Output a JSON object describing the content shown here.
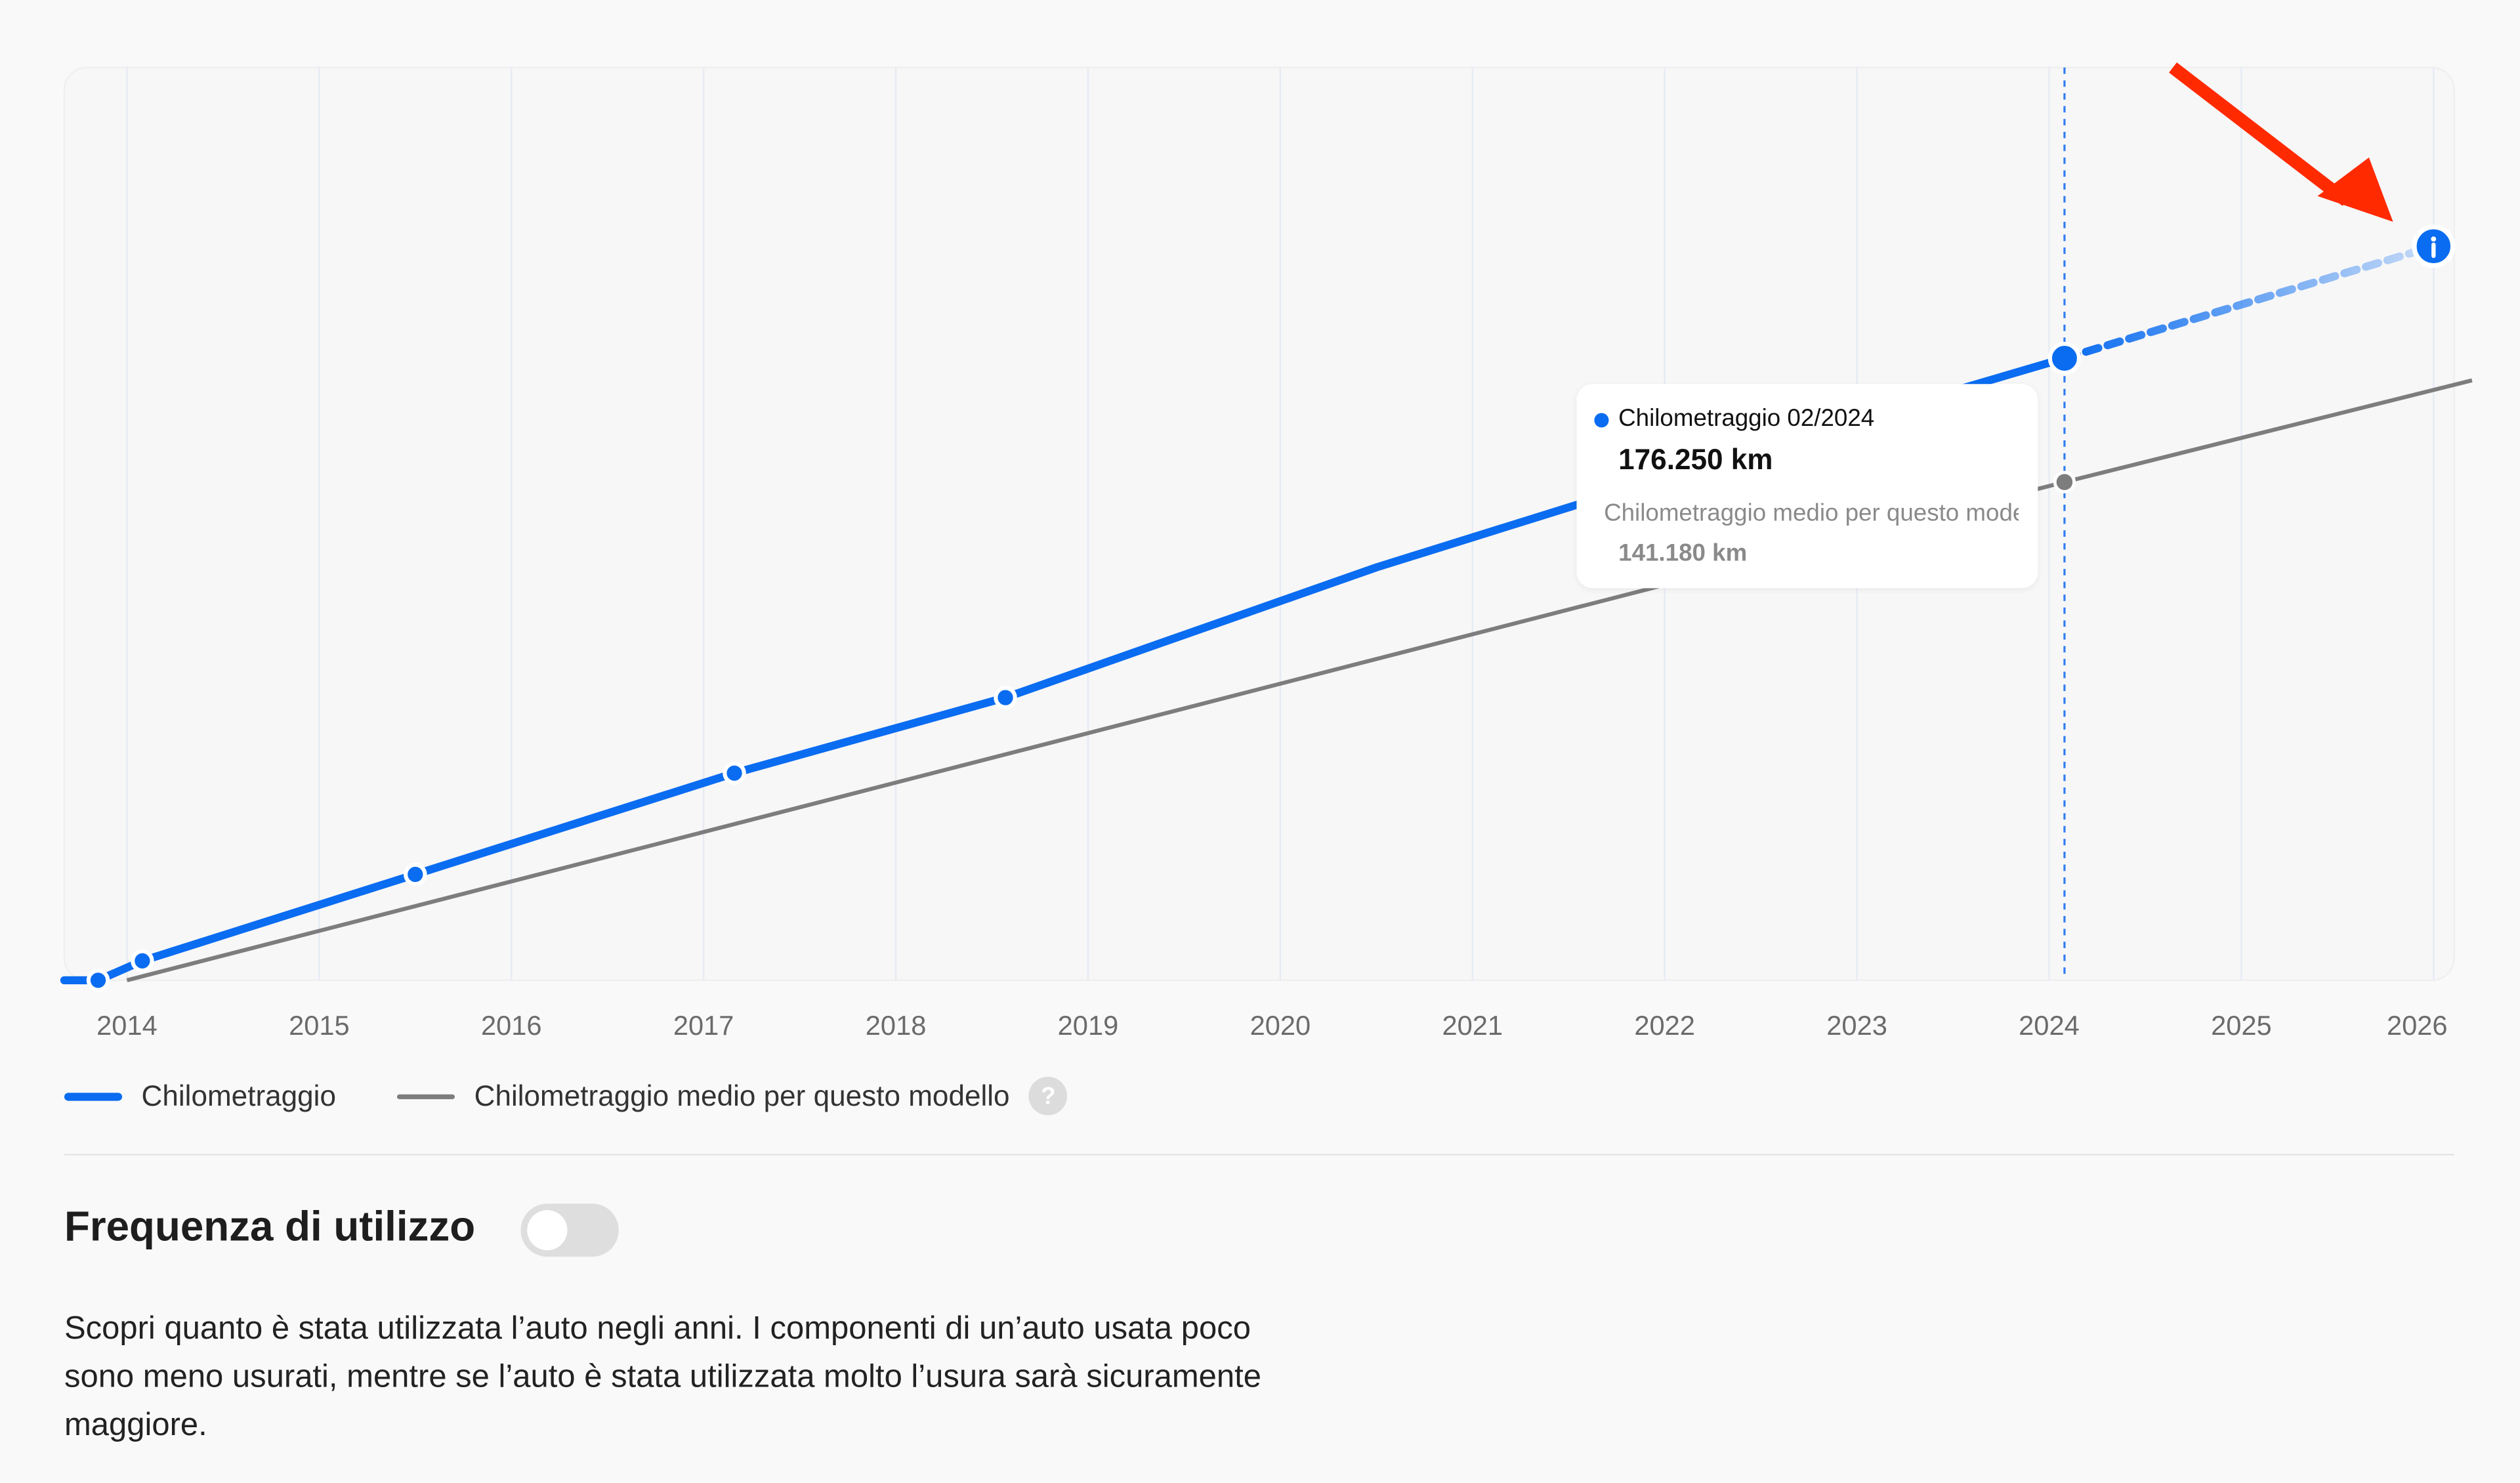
{
  "chart_data": {
    "type": "line",
    "x_ticks": [
      "2014",
      "2015",
      "2016",
      "2017",
      "2018",
      "2019",
      "2020",
      "2021",
      "2022",
      "2023",
      "2024",
      "2025",
      "2026"
    ],
    "xlim": [
      2013.7,
      2026.2
    ],
    "ylim": [
      0,
      260000
    ],
    "grid": "vertical",
    "legend_position": "bottom-left",
    "series": [
      {
        "name": "Chilometraggio",
        "color": "#0a6cf0",
        "points": [
          [
            2013.85,
            0
          ],
          [
            2014.08,
            5500
          ],
          [
            2015.5,
            30000
          ],
          [
            2017.16,
            58700
          ],
          [
            2018.57,
            80100
          ],
          [
            2020.5,
            117000
          ],
          [
            2022.5,
            151000
          ],
          [
            2024.08,
            176250
          ]
        ],
        "markers": [
          [
            2013.85,
            0
          ],
          [
            2014.08,
            5500
          ],
          [
            2015.5,
            30000
          ],
          [
            2017.16,
            58700
          ],
          [
            2018.57,
            80100
          ],
          [
            2024.08,
            176250
          ]
        ],
        "projection": [
          [
            2024.08,
            176250
          ],
          [
            2026.0,
            208000
          ]
        ]
      },
      {
        "name": "Chilometraggio medio per questo modello",
        "color": "#7d7d7d",
        "points": [
          [
            2014.0,
            0
          ],
          [
            2024.08,
            141180
          ],
          [
            2026.2,
            170000
          ]
        ]
      }
    ],
    "highlight_x": 2024.08
  },
  "tooltip": {
    "title": "Chilometraggio 02/2024",
    "value": "176.250 km",
    "avg_label": "Chilometraggio medio per questo modello",
    "avg_value": "141.180 km"
  },
  "legend": {
    "mileage": "Chilometraggio",
    "average": "Chilometraggio medio per questo modello",
    "help": "?"
  },
  "section": {
    "title": "Frequenza di utilizzo",
    "toggle_on": false,
    "description": "Scopri quanto è stata utilizzata l’auto negli anni. I componenti di un’auto usata poco sono meno usurati, mentre se l’auto è stata utilizzata molto l’usura sarà sicuramente maggiore."
  },
  "colors": {
    "accent": "#0a6cf0",
    "average": "#7d7d7d",
    "annotation_arrow": "#ff2a00"
  },
  "icons": {
    "projection_end": "info-icon",
    "annotation": "arrow-icon"
  }
}
